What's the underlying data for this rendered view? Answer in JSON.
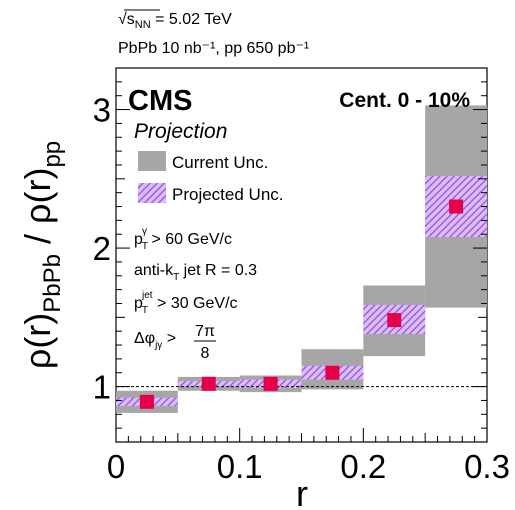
{
  "chart_data": {
    "type": "bar",
    "energy_label": "√s",
    "energy_sub": "NN",
    "energy_value": " = 5.02 TeV",
    "lumi_line": "PbPb 10 nb⁻¹, pp 650 pb⁻¹",
    "experiment": "CMS",
    "status": "Projection",
    "centrality": "Cent. 0 - 10%",
    "xlabel": "r",
    "ylabel": "ρ(r)PbPb / ρ(r)pp",
    "xlim": [
      0,
      0.3
    ],
    "ylim": [
      0.6,
      3.3
    ],
    "x_ticks": [
      "0",
      "0.1",
      "0.2",
      "0.3"
    ],
    "y_ticks": [
      "1",
      "2",
      "3"
    ],
    "reference_line": 1.0,
    "legend": [
      {
        "label": "Current Unc.",
        "style": "solid-gray"
      },
      {
        "label": "Projected Unc.",
        "style": "hatched-purple"
      }
    ],
    "selection": [
      "pT γ > 60 GeV/c",
      "anti-kT jet R = 0.3",
      "pT jet > 30 GeV/c",
      "Δφjγ > 7π/8"
    ],
    "bin_edges": [
      0,
      0.05,
      0.1,
      0.15,
      0.2,
      0.25,
      0.3
    ],
    "values": [
      0.89,
      1.02,
      1.02,
      1.1,
      1.48,
      2.3
    ],
    "current_unc_low": [
      0.81,
      0.97,
      0.96,
      0.98,
      1.22,
      1.57
    ],
    "current_unc_high": [
      0.97,
      1.07,
      1.08,
      1.27,
      1.73,
      3.03
    ],
    "projected_unc_low": [
      0.86,
      1.0,
      0.99,
      1.05,
      1.38,
      2.08
    ],
    "projected_unc_high": [
      0.92,
      1.04,
      1.05,
      1.15,
      1.59,
      2.52
    ],
    "colors": {
      "current_unc": "#a6a6a6",
      "projected_hatch": "#9b4de6",
      "projected_bg": "#d9bff5",
      "marker": "#e6004c",
      "axis": "#000000"
    }
  }
}
